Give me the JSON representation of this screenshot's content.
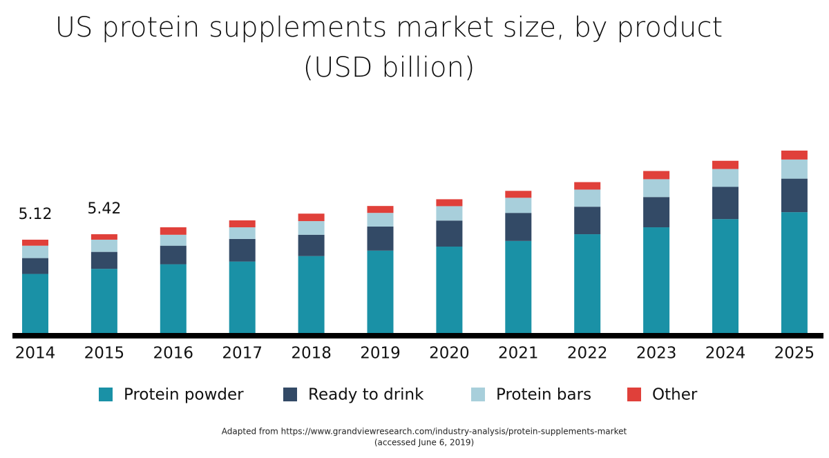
{
  "chart_data": {
    "type": "stacked_bar",
    "title": "US protein supplements market size, by product",
    "subtitle": "(USD billion)",
    "categories": [
      "2014",
      "2015",
      "2016",
      "2017",
      "2018",
      "2019",
      "2020",
      "2021",
      "2022",
      "2023",
      "2024",
      "2025"
    ],
    "series": [
      {
        "name": "Protein powder",
        "color": "#1a91a6",
        "values": [
          3.24,
          3.52,
          3.77,
          3.92,
          4.22,
          4.52,
          4.74,
          5.05,
          5.42,
          5.8,
          6.25,
          6.63
        ]
      },
      {
        "name": "Ready to drink",
        "color": "#334a66",
        "values": [
          0.87,
          0.93,
          1.02,
          1.24,
          1.17,
          1.32,
          1.43,
          1.54,
          1.51,
          1.66,
          1.77,
          1.84
        ]
      },
      {
        "name": "Protein bars",
        "color": "#a8cfdb",
        "values": [
          0.68,
          0.67,
          0.6,
          0.64,
          0.75,
          0.75,
          0.79,
          0.83,
          0.94,
          0.98,
          0.98,
          1.05
        ]
      },
      {
        "name": "Other",
        "color": "#e0403a",
        "values": [
          0.33,
          0.3,
          0.41,
          0.38,
          0.41,
          0.38,
          0.38,
          0.38,
          0.41,
          0.45,
          0.45,
          0.49
        ]
      }
    ],
    "annotations": [
      {
        "category": "2014",
        "value": 5.12
      },
      {
        "category": "2015",
        "value": 5.42
      }
    ],
    "source": [
      "Adapted from https://www.grandviewresearch.com/industry-analysis/protein-supplements-market",
      "(accessed June 6, 2019)"
    ]
  }
}
